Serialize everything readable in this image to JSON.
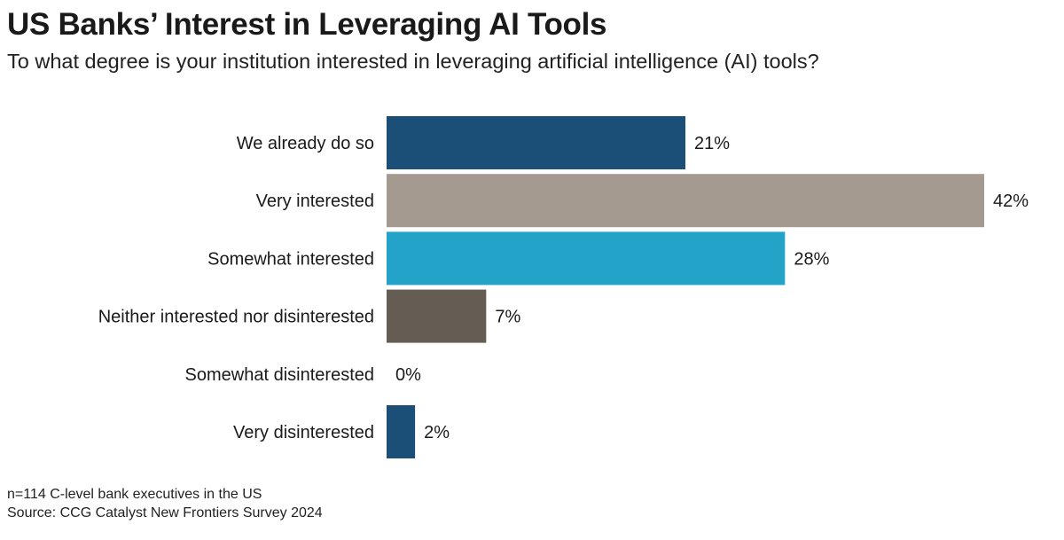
{
  "title": "US Banks’ Interest in Leveraging AI Tools",
  "subtitle": "To what degree is your institution interested in leveraging artificial intelligence (AI) tools?",
  "chart_data": {
    "type": "bar",
    "orientation": "horizontal",
    "categories": [
      "We already do so",
      "Very interested",
      "Somewhat interested",
      "Neither interested nor disinterested",
      "Somewhat disinterested",
      "Very disinterested"
    ],
    "values": [
      21,
      42,
      28,
      7,
      0,
      2
    ],
    "value_labels": [
      "21%",
      "42%",
      "28%",
      "7%",
      "0%",
      "2%"
    ],
    "colors": [
      "#1c4f78",
      "#a59a8f",
      "#24a3c9",
      "#655c53",
      "#1c4f78",
      "#1c4f78"
    ],
    "xlim": [
      0,
      42
    ],
    "unit": "%",
    "grid": false,
    "legend": "none"
  },
  "footer": {
    "sample_note": "n=114 C-level bank executives in the US",
    "source": "Source: CCG Catalyst New Frontiers Survey 2024"
  }
}
